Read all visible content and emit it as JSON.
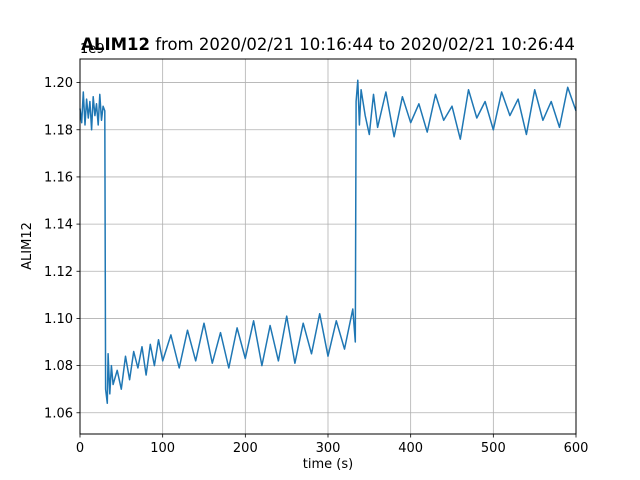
{
  "chart_data": {
    "type": "line",
    "title": {
      "bold": "ALIM12",
      "rest": " from 2020/02/21 10:16:44 to 2020/02/21 10:26:44"
    },
    "offset_text": "1e9",
    "xlabel": "time (s)",
    "ylabel": "ALIM12",
    "xlim": [
      0,
      600
    ],
    "ylim": [
      1.051,
      1.21
    ],
    "y_scale_note": "values ×1e9",
    "x_ticks": [
      0,
      100,
      200,
      300,
      400,
      500,
      600
    ],
    "x_tick_labels": [
      "0",
      "100",
      "200",
      "300",
      "400",
      "500",
      "600"
    ],
    "y_ticks": [
      1.06,
      1.08,
      1.1,
      1.12,
      1.14,
      1.16,
      1.18,
      1.2
    ],
    "y_tick_labels": [
      "1.06",
      "1.08",
      "1.10",
      "1.12",
      "1.14",
      "1.16",
      "1.18",
      "1.20"
    ],
    "grid": true,
    "line_color": "#1f77b4",
    "series": [
      {
        "x": [
          0,
          2,
          4,
          6,
          8,
          10,
          12,
          14,
          16,
          18,
          20,
          22,
          24,
          26,
          28,
          30,
          31,
          33,
          34,
          36,
          38,
          40,
          45,
          50,
          55,
          60,
          65,
          70,
          75,
          80,
          85,
          90,
          95,
          100,
          110,
          120,
          130,
          140,
          150,
          160,
          170,
          180,
          190,
          200,
          210,
          220,
          230,
          240,
          250,
          260,
          270,
          280,
          290,
          300,
          310,
          320,
          330,
          333,
          334,
          336,
          338,
          340,
          345,
          350,
          355,
          360,
          370,
          380,
          390,
          400,
          410,
          420,
          430,
          440,
          450,
          460,
          470,
          480,
          490,
          500,
          510,
          520,
          530,
          540,
          550,
          560,
          570,
          580,
          590,
          600
        ],
        "values": [
          1.189,
          1.183,
          1.196,
          1.182,
          1.193,
          1.185,
          1.192,
          1.18,
          1.194,
          1.186,
          1.191,
          1.182,
          1.195,
          1.184,
          1.19,
          1.188,
          1.07,
          1.064,
          1.085,
          1.068,
          1.08,
          1.072,
          1.078,
          1.07,
          1.084,
          1.074,
          1.086,
          1.079,
          1.088,
          1.076,
          1.089,
          1.08,
          1.091,
          1.082,
          1.093,
          1.079,
          1.095,
          1.082,
          1.098,
          1.081,
          1.094,
          1.079,
          1.096,
          1.083,
          1.099,
          1.08,
          1.097,
          1.082,
          1.101,
          1.081,
          1.098,
          1.085,
          1.102,
          1.084,
          1.099,
          1.087,
          1.104,
          1.09,
          1.192,
          1.201,
          1.182,
          1.197,
          1.186,
          1.178,
          1.195,
          1.181,
          1.196,
          1.177,
          1.194,
          1.183,
          1.191,
          1.179,
          1.195,
          1.184,
          1.19,
          1.176,
          1.197,
          1.185,
          1.192,
          1.18,
          1.196,
          1.186,
          1.193,
          1.178,
          1.197,
          1.184,
          1.192,
          1.181,
          1.198,
          1.188
        ]
      }
    ]
  }
}
